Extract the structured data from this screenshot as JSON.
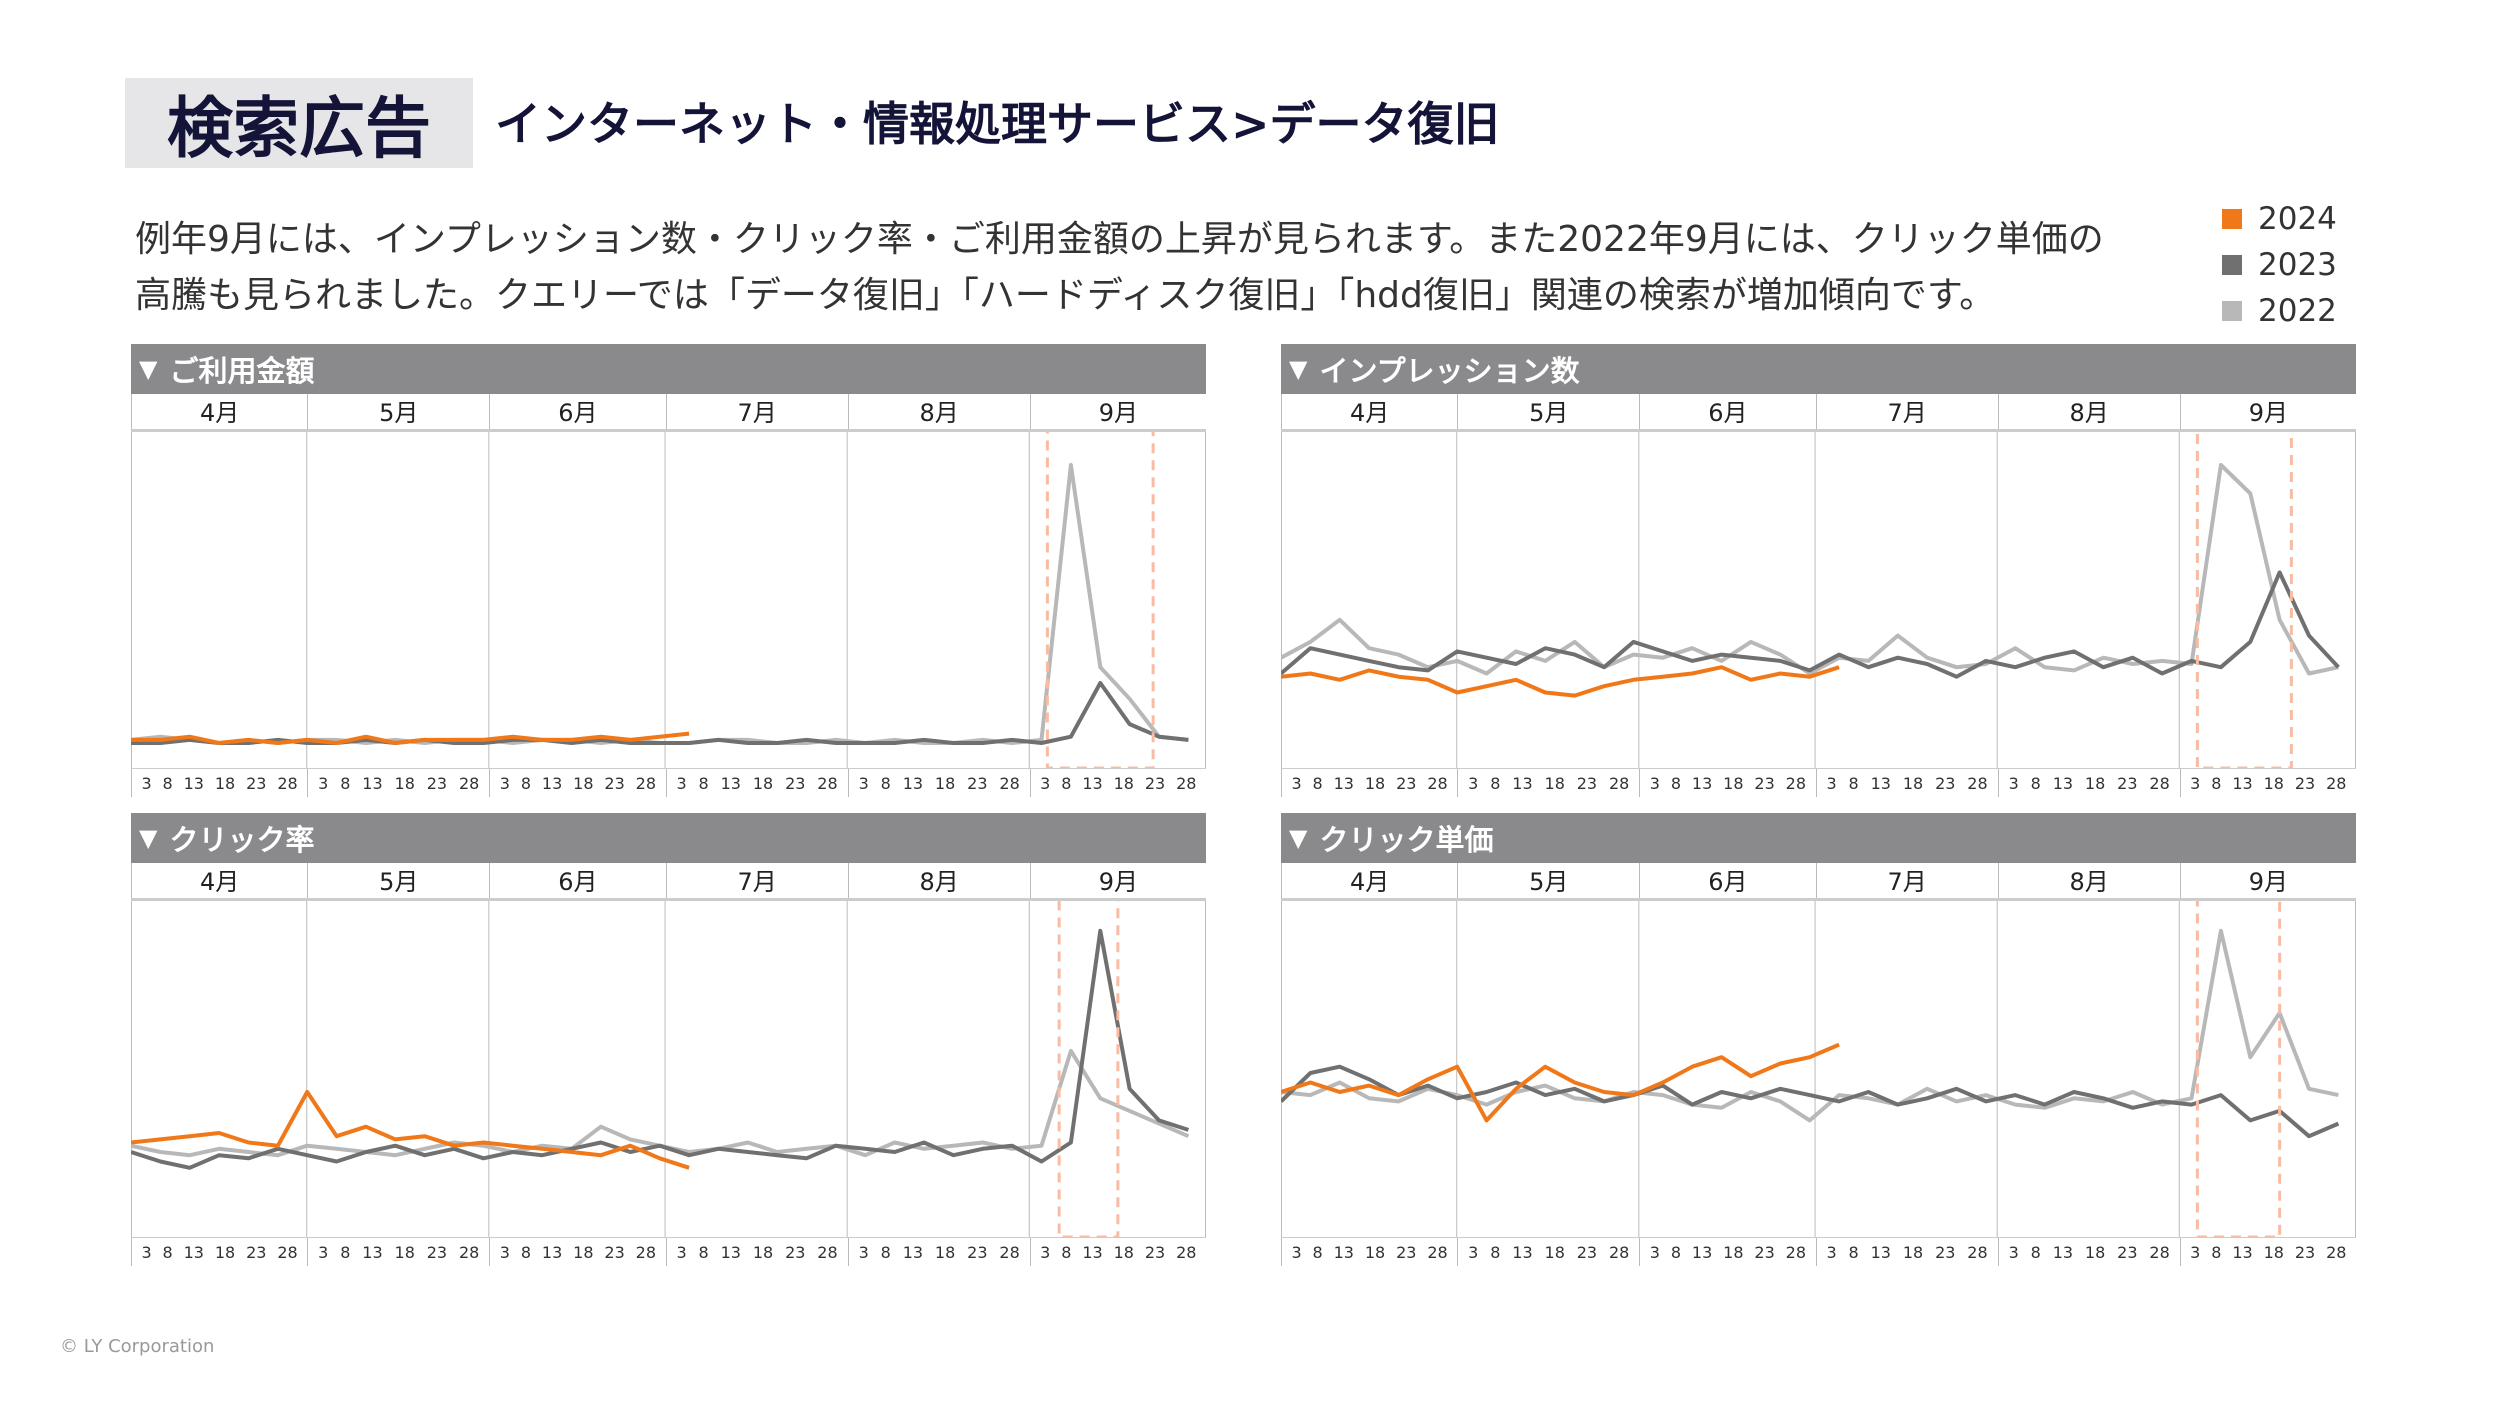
{
  "header": {
    "badge": "検索広告",
    "subtitle": "インターネット・情報処理サービス>データ復旧"
  },
  "description": [
    "例年9月には、インプレッション数・クリック率・ご利用金額の上昇が見られます。また2022年9月には、クリック単価の",
    "高騰も見られました。クエリーでは「データ復旧」「ハードディスク復旧」「hdd復旧」関連の検索が増加傾向です。"
  ],
  "legend": [
    {
      "label": "2024",
      "color": "#f07818"
    },
    {
      "label": "2023",
      "color": "#707070"
    },
    {
      "label": "2022",
      "color": "#b8b8b8"
    }
  ],
  "footer": "© LY Corporation",
  "chart_data": [
    {
      "type": "line",
      "title": "ご利用金額",
      "months": [
        "4月",
        "5月",
        "6月",
        "7月",
        "8月",
        "9月"
      ],
      "month_days": [
        30,
        31,
        30,
        31,
        31,
        30
      ],
      "day_ticks": [
        "3",
        "8",
        "13",
        "18",
        "23",
        "28"
      ],
      "x_step_days": 5,
      "ylim": [
        0,
        100
      ],
      "highlight_days": [
        156,
        174
      ],
      "series": [
        {
          "name": "2022",
          "color": "#b8b8b8",
          "values": [
            7,
            8,
            7,
            6,
            7,
            6,
            7,
            7,
            6,
            7,
            6,
            7,
            7,
            6,
            7,
            7,
            6,
            7,
            6,
            6,
            7,
            7,
            6,
            6,
            7,
            6,
            7,
            6,
            6,
            7,
            6,
            7,
            94,
            30,
            20,
            8,
            7
          ]
        },
        {
          "name": "2023",
          "color": "#707070",
          "values": [
            6,
            6,
            7,
            6,
            6,
            7,
            6,
            6,
            7,
            6,
            7,
            6,
            6,
            7,
            7,
            6,
            7,
            6,
            6,
            6,
            7,
            6,
            6,
            7,
            6,
            6,
            6,
            7,
            6,
            6,
            7,
            6,
            8,
            25,
            12,
            8,
            7
          ]
        },
        {
          "name": "2024",
          "color": "#f07818",
          "values": [
            7,
            7,
            8,
            6,
            7,
            6,
            7,
            6,
            8,
            6,
            7,
            7,
            7,
            8,
            7,
            7,
            8,
            7,
            8,
            9
          ]
        }
      ]
    },
    {
      "type": "line",
      "title": "インプレッション数",
      "months": [
        "4月",
        "5月",
        "6月",
        "7月",
        "8月",
        "9月"
      ],
      "month_days": [
        30,
        31,
        30,
        31,
        31,
        30
      ],
      "day_ticks": [
        "3",
        "8",
        "13",
        "18",
        "23",
        "28"
      ],
      "x_step_days": 5,
      "ylim": [
        0,
        100
      ],
      "highlight_days": [
        156,
        172
      ],
      "series": [
        {
          "name": "2022",
          "color": "#b8b8b8",
          "values": [
            33,
            38,
            45,
            36,
            34,
            30,
            32,
            28,
            35,
            32,
            38,
            30,
            34,
            33,
            36,
            32,
            38,
            34,
            28,
            33,
            32,
            40,
            33,
            30,
            31,
            36,
            30,
            29,
            33,
            31,
            32,
            31,
            94,
            85,
            45,
            28,
            30
          ]
        },
        {
          "name": "2023",
          "color": "#707070",
          "values": [
            28,
            36,
            34,
            32,
            30,
            29,
            35,
            33,
            31,
            36,
            34,
            30,
            38,
            35,
            32,
            34,
            33,
            32,
            29,
            34,
            30,
            33,
            31,
            27,
            32,
            30,
            33,
            35,
            30,
            33,
            28,
            32,
            30,
            38,
            60,
            40,
            30
          ]
        },
        {
          "name": "2024",
          "color": "#f07818",
          "values": [
            27,
            28,
            26,
            29,
            27,
            26,
            22,
            24,
            26,
            22,
            21,
            24,
            26,
            27,
            28,
            30,
            26,
            28,
            27,
            30
          ]
        }
      ]
    },
    {
      "type": "line",
      "title": "クリック率",
      "months": [
        "4月",
        "5月",
        "6月",
        "7月",
        "8月",
        "9月"
      ],
      "month_days": [
        30,
        31,
        30,
        31,
        31,
        30
      ],
      "day_ticks": [
        "3",
        "8",
        "13",
        "18",
        "23",
        "28"
      ],
      "x_step_days": 5,
      "ylim": [
        0,
        100
      ],
      "highlight_days": [
        158,
        168
      ],
      "series": [
        {
          "name": "2022",
          "color": "#b8b8b8",
          "values": [
            27,
            25,
            24,
            26,
            25,
            24,
            27,
            26,
            25,
            24,
            26,
            28,
            27,
            25,
            27,
            26,
            33,
            29,
            27,
            25,
            26,
            28,
            25,
            26,
            27,
            24,
            28,
            26,
            27,
            28,
            26,
            27,
            57,
            42,
            38,
            34,
            30
          ]
        },
        {
          "name": "2023",
          "color": "#707070",
          "values": [
            25,
            22,
            20,
            24,
            23,
            26,
            24,
            22,
            25,
            27,
            24,
            26,
            23,
            25,
            24,
            26,
            28,
            25,
            27,
            24,
            26,
            25,
            24,
            23,
            27,
            26,
            25,
            28,
            24,
            26,
            27,
            22,
            28,
            95,
            45,
            35,
            32
          ]
        },
        {
          "name": "2024",
          "color": "#f07818",
          "values": [
            28,
            29,
            30,
            31,
            28,
            27,
            44,
            30,
            33,
            29,
            30,
            27,
            28,
            27,
            26,
            25,
            24,
            27,
            23,
            20
          ]
        }
      ]
    },
    {
      "type": "line",
      "title": "クリック単価",
      "months": [
        "4月",
        "5月",
        "6月",
        "7月",
        "8月",
        "9月"
      ],
      "month_days": [
        30,
        31,
        30,
        31,
        31,
        30
      ],
      "day_ticks": [
        "3",
        "8",
        "13",
        "18",
        "23",
        "28"
      ],
      "x_step_days": 5,
      "ylim": [
        0,
        100
      ],
      "highlight_days": [
        156,
        170
      ],
      "series": [
        {
          "name": "2022",
          "color": "#b8b8b8",
          "values": [
            44,
            43,
            47,
            42,
            41,
            45,
            43,
            40,
            44,
            46,
            42,
            41,
            44,
            43,
            40,
            39,
            44,
            41,
            35,
            43,
            42,
            40,
            45,
            41,
            43,
            40,
            39,
            42,
            41,
            44,
            40,
            42,
            95,
            55,
            69,
            45,
            43
          ]
        },
        {
          "name": "2023",
          "color": "#707070",
          "values": [
            41,
            50,
            52,
            48,
            43,
            46,
            42,
            44,
            47,
            43,
            45,
            41,
            43,
            46,
            40,
            44,
            42,
            45,
            43,
            41,
            44,
            40,
            42,
            45,
            41,
            43,
            40,
            44,
            42,
            39,
            41,
            40,
            43,
            35,
            38,
            30,
            34
          ]
        },
        {
          "name": "2024",
          "color": "#f07818",
          "values": [
            44,
            47,
            44,
            46,
            43,
            48,
            52,
            35,
            45,
            52,
            47,
            44,
            43,
            47,
            52,
            55,
            49,
            53,
            55,
            59
          ]
        }
      ]
    }
  ]
}
